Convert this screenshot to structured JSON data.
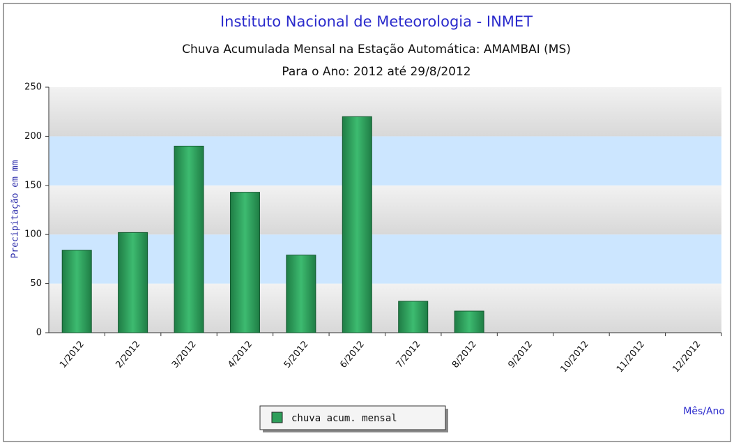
{
  "chart_data": {
    "type": "bar",
    "title": "Instituto Nacional de Meteorologia - INMET",
    "subtitle": "Chuva Acumulada Mensal na Estação Automática: AMAMBAI (MS)",
    "subtitle2": "Para o Ano: 2012 até 29/8/2012",
    "y_label": "Precipitação em mm",
    "x_label": "Mês/Ano",
    "categories": [
      "1/2012",
      "2/2012",
      "3/2012",
      "4/2012",
      "5/2012",
      "6/2012",
      "7/2012",
      "8/2012",
      "9/2012",
      "10/2012",
      "11/2012",
      "12/2012"
    ],
    "series": [
      {
        "name": "chuva acum. mensal",
        "color": "#2e9e5a",
        "values": [
          84,
          102,
          190,
          143,
          79,
          220,
          32,
          22,
          null,
          null,
          null,
          null
        ]
      }
    ],
    "ylim": [
      0,
      250
    ],
    "yticks": [
      0,
      50,
      100,
      150,
      200,
      250
    ],
    "grid": true,
    "legend": "bottom"
  }
}
